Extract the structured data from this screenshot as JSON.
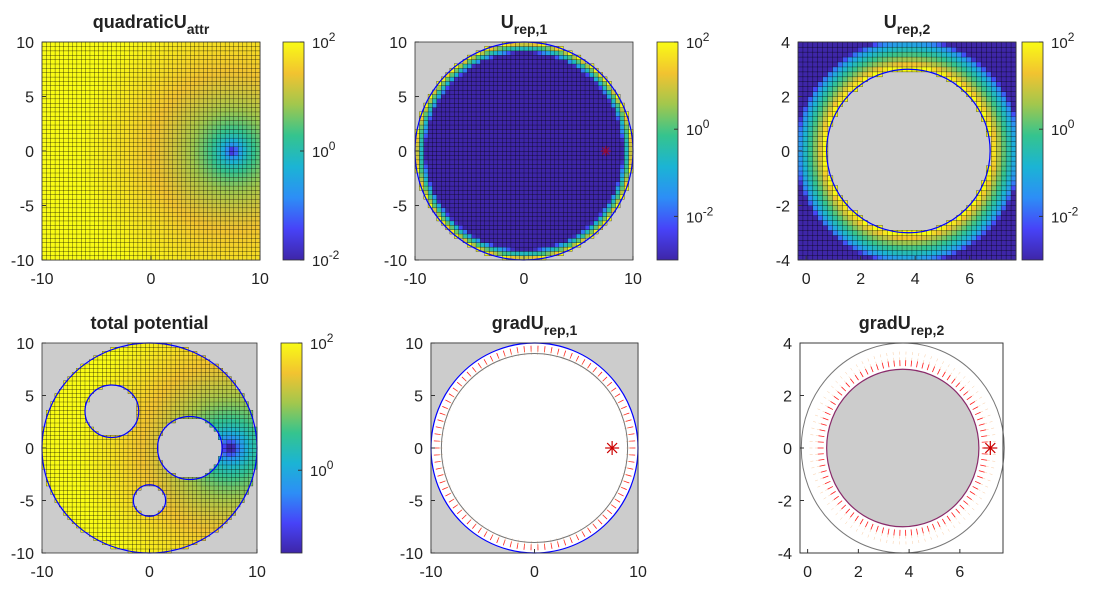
{
  "figure": {
    "colormap": [
      "#3e26a8",
      "#4743f8",
      "#2d8ef6",
      "#1bb4d4",
      "#35c48e",
      "#a2c74d",
      "#f2c330",
      "#f9fb15"
    ],
    "background_gray": "#cccccc",
    "circle_color": "#0000ff",
    "grid_color": "#000000",
    "goal_color": "#cc0000",
    "arrow_color": "#ff0000"
  },
  "chart_data": [
    {
      "id": "quadraticUattr",
      "type": "heatmap",
      "title": "quadraticU",
      "title_sub": "attr",
      "xlim": [
        -10,
        10
      ],
      "ylim": [
        -10,
        10
      ],
      "xticks": [
        "-10",
        "0",
        "10"
      ],
      "yticks": [
        "10",
        "5",
        "0",
        "-5",
        "-10"
      ],
      "goal": [
        7.5,
        0
      ],
      "colorbar": {
        "scale": "log",
        "range": [
          0.01,
          100
        ],
        "ticks": [
          {
            "base": "10",
            "exp": "2"
          },
          {
            "base": "10",
            "exp": "0"
          },
          {
            "base": "10",
            "exp": "-2"
          }
        ]
      }
    },
    {
      "id": "Urep1",
      "type": "heatmap",
      "title": "U",
      "title_sub": "rep,1",
      "xlim": [
        -10,
        10
      ],
      "ylim": [
        -10,
        10
      ],
      "xticks": [
        "-10",
        "0",
        "10"
      ],
      "yticks": [
        "10",
        "5",
        "0",
        "-5",
        "-10"
      ],
      "obstacle_circle": {
        "center": [
          0,
          0
        ],
        "radius": 10
      },
      "goal": [
        7.5,
        0
      ],
      "colorbar": {
        "scale": "log",
        "range": [
          0.001,
          100
        ],
        "ticks": [
          {
            "base": "10",
            "exp": "2"
          },
          {
            "base": "10",
            "exp": "0"
          },
          {
            "base": "10",
            "exp": "-2"
          }
        ]
      }
    },
    {
      "id": "Urep2",
      "type": "heatmap",
      "title": "U",
      "title_sub": "rep,2",
      "xlim": [
        -0.3,
        7.7
      ],
      "ylim": [
        -4,
        4
      ],
      "xticks": [
        "0",
        "2",
        "4",
        "6"
      ],
      "xtick_values": [
        0,
        2,
        4,
        6
      ],
      "yticks": [
        "4",
        "2",
        "0",
        "-2",
        "-4"
      ],
      "obstacle_circle": {
        "center": [
          3.75,
          0
        ],
        "radius": 3
      },
      "colorbar": {
        "scale": "log",
        "range": [
          0.001,
          100
        ],
        "ticks": [
          {
            "base": "10",
            "exp": "2"
          },
          {
            "base": "10",
            "exp": "0"
          },
          {
            "base": "10",
            "exp": "-2"
          }
        ]
      }
    },
    {
      "id": "totalPotential",
      "type": "heatmap",
      "title": "total potential",
      "title_sub": "",
      "xlim": [
        -10,
        10
      ],
      "ylim": [
        -10,
        10
      ],
      "xticks": [
        "-10",
        "0",
        "10"
      ],
      "yticks": [
        "10",
        "5",
        "0",
        "-5",
        "-10"
      ],
      "boundary_circle": {
        "center": [
          0,
          0
        ],
        "radius": 10
      },
      "obstacles": [
        {
          "center": [
            -3.5,
            3.5
          ],
          "radius": 2.5
        },
        {
          "center": [
            3.75,
            0
          ],
          "radius": 3
        },
        {
          "center": [
            0,
            -5
          ],
          "radius": 1.5
        }
      ],
      "goal": [
        7.5,
        0
      ],
      "colorbar": {
        "scale": "log",
        "range": [
          0.05,
          100
        ],
        "ticks": [
          {
            "base": "10",
            "exp": "2"
          },
          {
            "base": "10",
            "exp": "0"
          }
        ]
      }
    },
    {
      "id": "gradUrep1",
      "type": "quiver",
      "title": "gradU",
      "title_sub": "rep,1",
      "xlim": [
        -10,
        10
      ],
      "ylim": [
        -10,
        10
      ],
      "xticks": [
        "-10",
        "0",
        "10"
      ],
      "yticks": [
        "10",
        "5",
        "0",
        "-5",
        "-10"
      ],
      "obstacle_circle": {
        "center": [
          0,
          0
        ],
        "radius": 10
      },
      "influence_circle": {
        "center": [
          0,
          0
        ],
        "radius": 9
      },
      "goal": [
        7.5,
        0
      ]
    },
    {
      "id": "gradUrep2",
      "type": "quiver",
      "title": "gradU",
      "title_sub": "rep,2",
      "xlim": [
        -0.3,
        7.7
      ],
      "ylim": [
        -4,
        4
      ],
      "xticks": [
        "0",
        "2",
        "4",
        "6"
      ],
      "xtick_values": [
        0,
        2,
        4,
        6
      ],
      "yticks": [
        "4",
        "2",
        "0",
        "-2",
        "-4"
      ],
      "obstacle_circle": {
        "center": [
          3.75,
          0
        ],
        "radius": 3
      },
      "influence_circle": {
        "center": [
          3.75,
          0
        ],
        "radius": 4
      },
      "goal": [
        7.2,
        0
      ]
    }
  ]
}
